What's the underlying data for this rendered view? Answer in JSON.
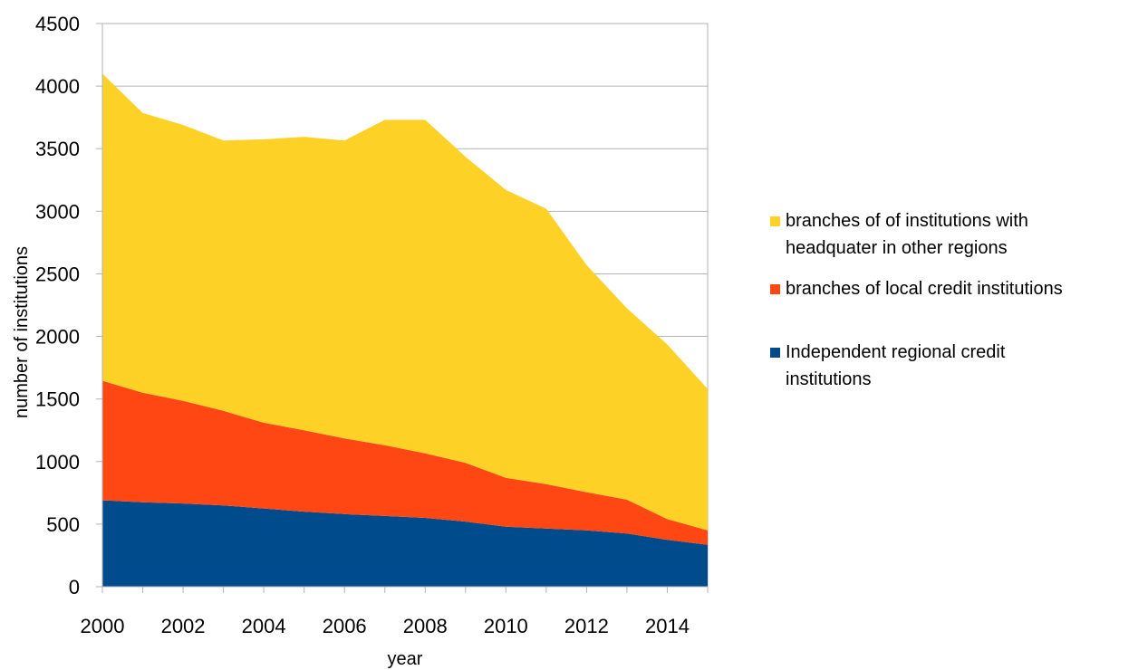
{
  "chart_data": {
    "type": "area",
    "stacked": true,
    "title": "",
    "xlabel": "year",
    "ylabel": "number of institutions",
    "x": [
      2000,
      2001,
      2002,
      2003,
      2004,
      2005,
      2006,
      2007,
      2008,
      2009,
      2010,
      2011,
      2012,
      2013,
      2014,
      2015
    ],
    "xlim": [
      2000,
      2015
    ],
    "ylim": [
      0,
      4500
    ],
    "x_ticks": [
      "2000",
      "2002",
      "2004",
      "2006",
      "2008",
      "2010",
      "2012",
      "2014"
    ],
    "y_ticks": [
      "0",
      "500",
      "1000",
      "1500",
      "2000",
      "2500",
      "3000",
      "3500",
      "4000",
      "4500"
    ],
    "grid": "horizontal",
    "legend_position": "right",
    "series": [
      {
        "name": "Independent regional credit institutions",
        "legend_lines": [
          "Independent regional credit",
          "institutions"
        ],
        "color": "#004B8C",
        "values": [
          690,
          675,
          665,
          650,
          625,
          600,
          580,
          565,
          550,
          520,
          480,
          465,
          450,
          425,
          375,
          335
        ]
      },
      {
        "name": "branches of local credit institutions",
        "legend_lines": [
          "branches of local credit institutions"
        ],
        "color": "#FF4713",
        "values": [
          955,
          875,
          820,
          755,
          685,
          650,
          605,
          565,
          515,
          470,
          390,
          355,
          305,
          270,
          165,
          115
        ]
      },
      {
        "name": "branches of of institutions with headquater in other regions",
        "legend_lines": [
          "branches of of institutions with",
          "headquater in other regions"
        ],
        "color": "#FDD126",
        "values": [
          2455,
          2235,
          2205,
          2160,
          2265,
          2345,
          2380,
          2600,
          2665,
          2445,
          2300,
          2200,
          1815,
          1530,
          1395,
          1130
        ]
      }
    ]
  }
}
